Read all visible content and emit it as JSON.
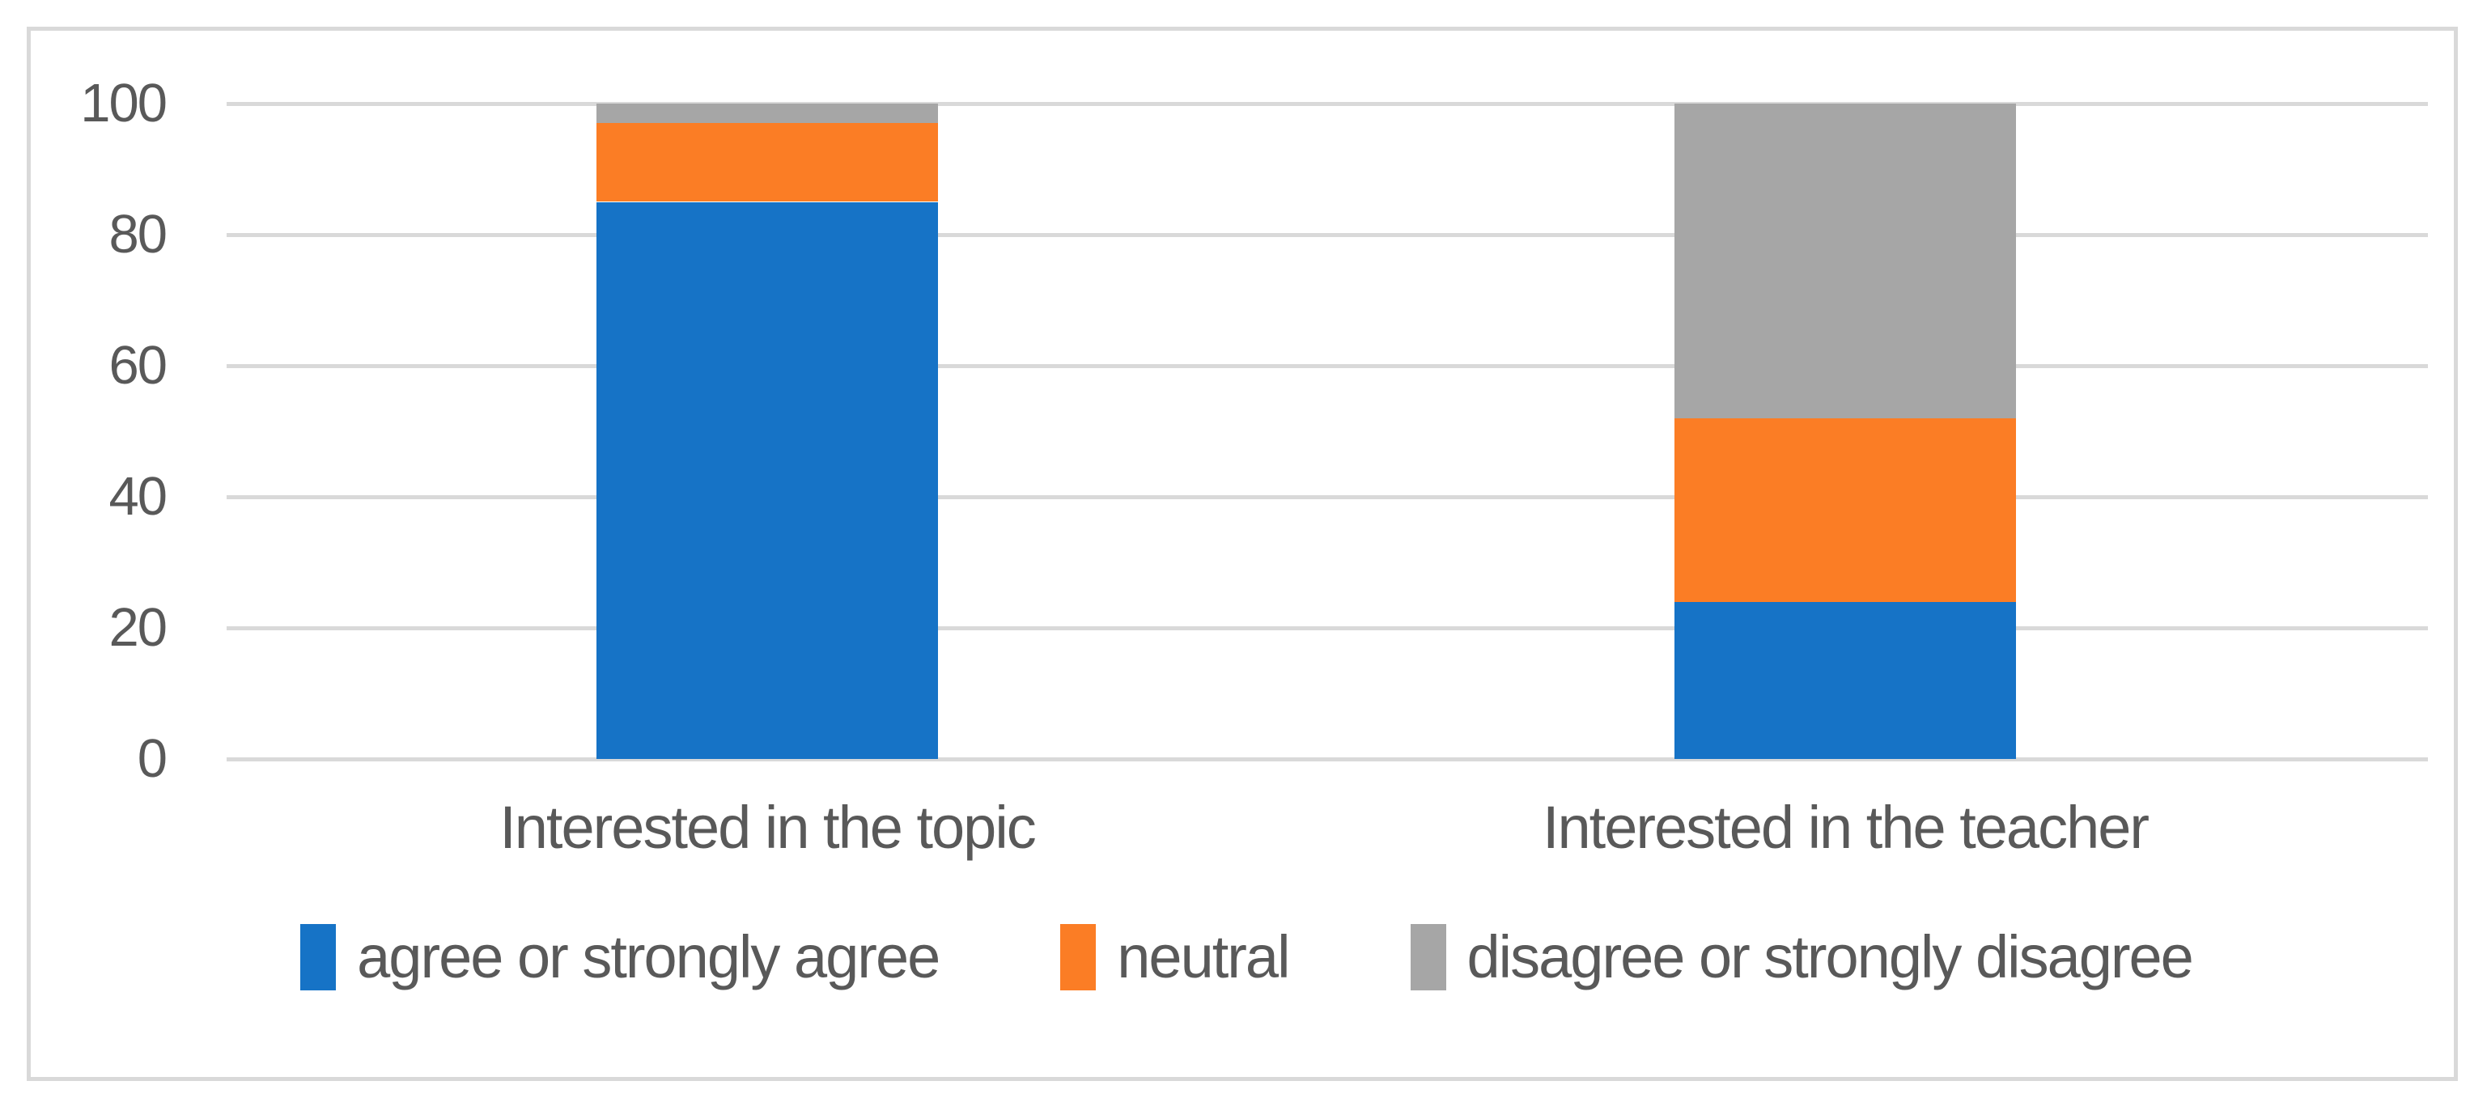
{
  "figure": {
    "background": "#FFFFFF",
    "border_color": "#D9D9D9"
  },
  "chart_data": {
    "type": "bar",
    "stacked": true,
    "title": "",
    "xlabel": "",
    "ylabel": "",
    "categories": [
      "Interested in the topic",
      "Interested in the teacher"
    ],
    "series": [
      {
        "name": "agree or strongly agree",
        "color": "#1673C6",
        "values": [
          85,
          24
        ]
      },
      {
        "name": "neutral",
        "color": "#FB7D25",
        "values": [
          12,
          28
        ]
      },
      {
        "name": "disagree or strongly disagree",
        "color": "#A6A6A6",
        "values": [
          3,
          48
        ]
      }
    ],
    "ylim": [
      0,
      100
    ],
    "yticks": [
      0,
      20,
      40,
      60,
      80,
      100
    ],
    "grid": true,
    "gridline_color": "#D9D9D9",
    "text_color": "#595959",
    "legend_position": "bottom"
  }
}
